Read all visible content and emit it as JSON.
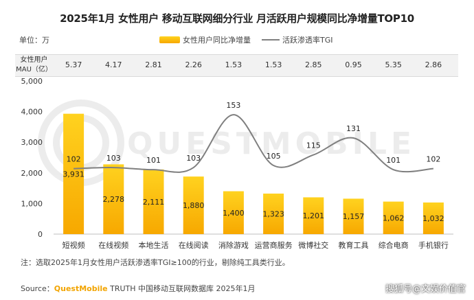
{
  "chart_data": {
    "type": "bar",
    "title": "2025年1月 女性用户 移动互联网细分行业 月活跃用户规模同比净增量TOP10",
    "unit_label": "单位：万",
    "categories": [
      "短视频",
      "在线视频",
      "本地生活",
      "在线阅读",
      "消除游戏",
      "运营商服务",
      "微博社交",
      "教育工具",
      "综合电商",
      "手机银行"
    ],
    "series": [
      {
        "name": "女性用户同比净增量",
        "type": "bar",
        "values": [
          3931,
          2278,
          2111,
          1880,
          1400,
          1323,
          1201,
          1157,
          1062,
          1032
        ]
      },
      {
        "name": "活跃渗透率TGI",
        "type": "line",
        "values": [
          102,
          103,
          101,
          103,
          153,
          105,
          115,
          131,
          101,
          102
        ]
      }
    ],
    "y_ticks": [
      "0",
      "1,000",
      "2,000",
      "3,000",
      "4,000",
      "5,000"
    ],
    "ylim": [
      0,
      5000
    ],
    "bar_labels": [
      "3,931",
      "2,278",
      "2,111",
      "1,880",
      "1,400",
      "1,323",
      "1,201",
      "1,157",
      "1,062",
      "1,032"
    ],
    "mau_row": {
      "label_line1": "女性用户",
      "label_line2": "MAU（亿）",
      "values": [
        "5.37",
        "4.17",
        "2.81",
        "2.26",
        "1.53",
        "1.53",
        "2.85",
        "0.95",
        "5.35",
        "2.86"
      ]
    },
    "legend_placement": "top"
  },
  "note": "注：选取2025年1月女性用户活跃渗透率TGI≥100的行业，剔除纯工具类行业。",
  "source": {
    "prefix": "Source：",
    "brand": "QuestMobile",
    "rest": " TRUTH 中国移动互联网数据库 2025年1月"
  },
  "watermark": "搜狐号@文娱价值官",
  "background_logo": "QUESTMOBILE",
  "colors": {
    "bar_top": "#ffd21f",
    "bar_bottom": "#f7a800",
    "line": "#7f7f7f",
    "brand": "#f2a400"
  }
}
